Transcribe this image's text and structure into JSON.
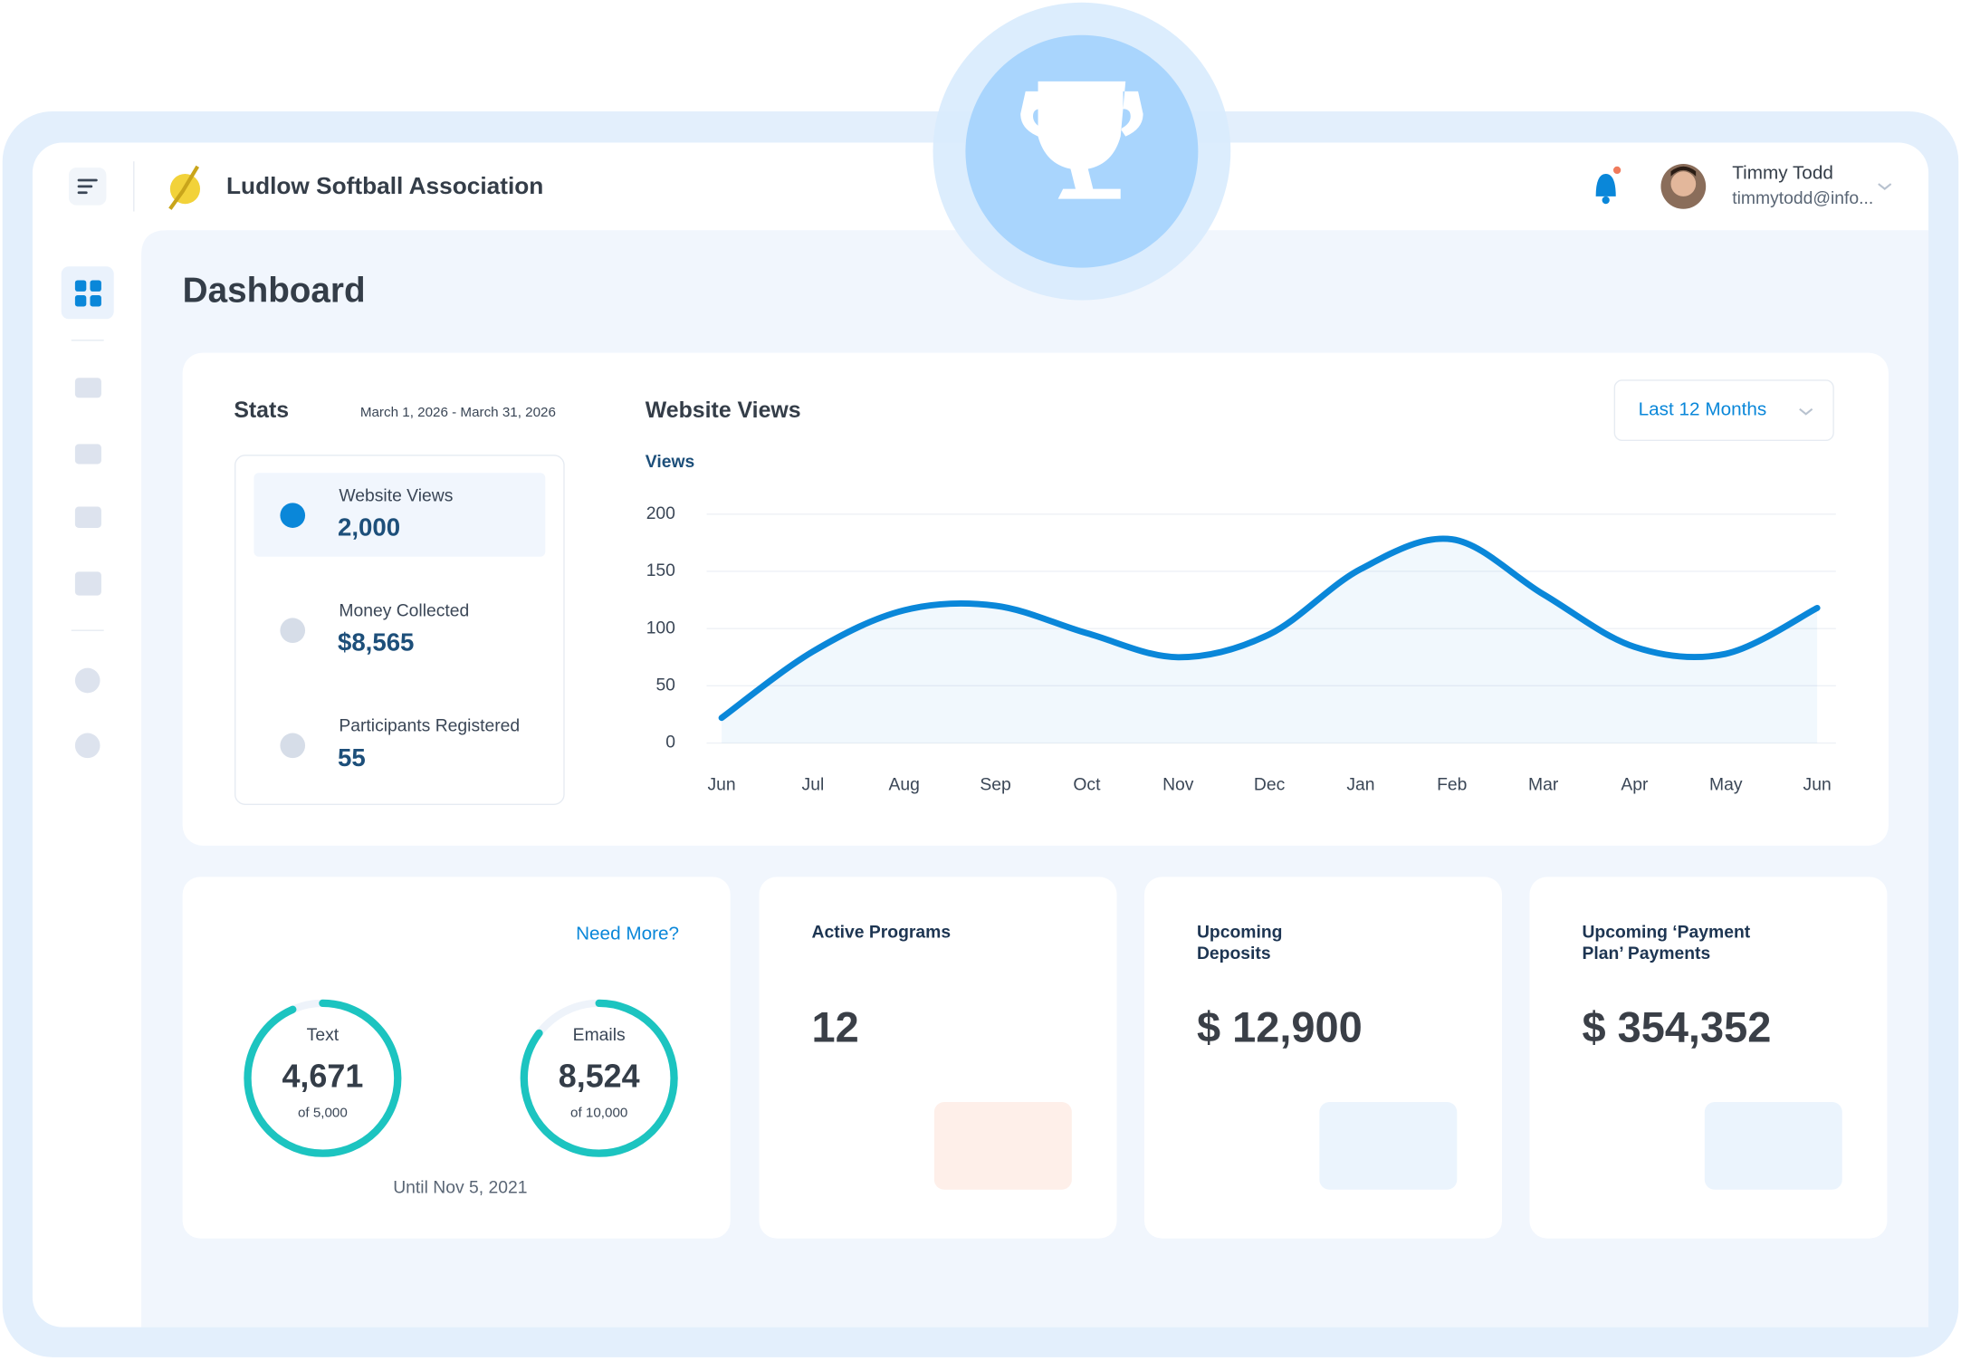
{
  "header": {
    "org": "Ludlow Softball Association",
    "user_name": "Timmy Todd",
    "user_email": "timmytodd@info..."
  },
  "page_title": "Dashboard",
  "stats": {
    "title": "Stats",
    "date_range": "March 1, 2026 - March 31, 2026",
    "items": [
      {
        "label": "Website Views",
        "value": "2,000"
      },
      {
        "label": "Money Collected",
        "value": "$8,565"
      },
      {
        "label": "Participants Registered",
        "value": "55"
      }
    ]
  },
  "chart_data": {
    "type": "line",
    "title": "Website Views",
    "y_label": "Views",
    "range_select": "Last 12 Months",
    "categories": [
      "Jun",
      "Jul",
      "Aug",
      "Sep",
      "Oct",
      "Nov",
      "Dec",
      "Jan",
      "Feb",
      "Mar",
      "Apr",
      "May",
      "Jun"
    ],
    "values": [
      22,
      80,
      116,
      120,
      96,
      75,
      95,
      152,
      178,
      130,
      84,
      78,
      118
    ],
    "ylim": [
      0,
      200
    ],
    "yticks": [
      0,
      50,
      100,
      150,
      200
    ],
    "color": "#0a87d9",
    "grid": true,
    "area": true
  },
  "messaging": {
    "link": "Need More?",
    "gauges": [
      {
        "label": "Text",
        "used": {
          "value": 4671,
          "label": "4,671"
        },
        "total": {
          "value": 5000,
          "label": "of 5,000"
        }
      },
      {
        "label": "Emails",
        "used": {
          "value": 8524,
          "label": "8,524"
        },
        "total": {
          "value": 10000,
          "label": "of 10,000"
        }
      }
    ],
    "until": "Until Nov 5, 2021"
  },
  "cards": [
    {
      "title_lines": [
        "Active Programs"
      ],
      "value": "12"
    },
    {
      "title_lines": [
        "Upcoming",
        "Deposits"
      ],
      "value": "$ 12,900"
    },
    {
      "title_lines": [
        "Upcoming ‘Payment",
        "Plan’ Payments"
      ],
      "value": "$ 354,352"
    }
  ]
}
